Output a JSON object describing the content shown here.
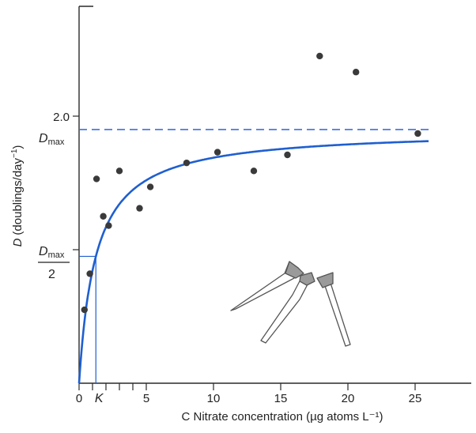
{
  "colors": {
    "curve": "#1f5fd0",
    "points": "#3a3a3a",
    "axis": "#2a2a2a",
    "dashed": "#3a6fe0",
    "cell": "#555555"
  },
  "chart_data": {
    "type": "scatter",
    "title": "",
    "xlabel": "C Nitrate concentration (µg atoms L⁻¹)",
    "ylabel_main": "D",
    "ylabel_rest": "(doublings/day",
    "ylabel_sup": "−1",
    "ylabel_close": ")",
    "xlim": [
      0,
      29
    ],
    "ylim": [
      0,
      2.75
    ],
    "x_ticks": [
      0,
      1,
      2,
      3,
      4,
      5,
      10,
      15,
      20,
      25
    ],
    "x_tick_labels": [
      {
        "x": 0,
        "text": "0"
      },
      {
        "x": 5,
        "text": "5"
      },
      {
        "x": 10,
        "text": "10"
      },
      {
        "x": 15,
        "text": "15"
      },
      {
        "x": 20,
        "text": "20"
      },
      {
        "x": 25,
        "text": "25"
      }
    ],
    "k_label": {
      "x": 1.25,
      "text": "K"
    },
    "y_ticks": [
      1.0,
      2.0
    ],
    "y_tick_labels": [
      {
        "y": 2.0,
        "text": "2.0"
      }
    ],
    "dmax_label": {
      "base": "D",
      "sub": "max"
    },
    "half_label": {
      "num_base": "D",
      "num_sub": "max",
      "den": "2"
    },
    "curve": {
      "model": "monod",
      "Dmax": 1.9,
      "K": 1.25,
      "x_end": 26
    },
    "series": [
      {
        "x": [
          0.4,
          0.8,
          1.3,
          1.8,
          2.2,
          3.0,
          4.5,
          5.3,
          8.0,
          10.3,
          13.0,
          15.5,
          17.9,
          20.6,
          25.2
        ],
        "y": [
          0.55,
          0.82,
          1.53,
          1.25,
          1.18,
          1.59,
          1.31,
          1.47,
          1.65,
          1.73,
          1.59,
          1.71,
          2.45,
          2.33,
          1.87
        ]
      }
    ],
    "annotations": {
      "dmax_dashed_y": 1.9,
      "half_guide": {
        "x": 1.25,
        "y": 0.95
      }
    }
  }
}
